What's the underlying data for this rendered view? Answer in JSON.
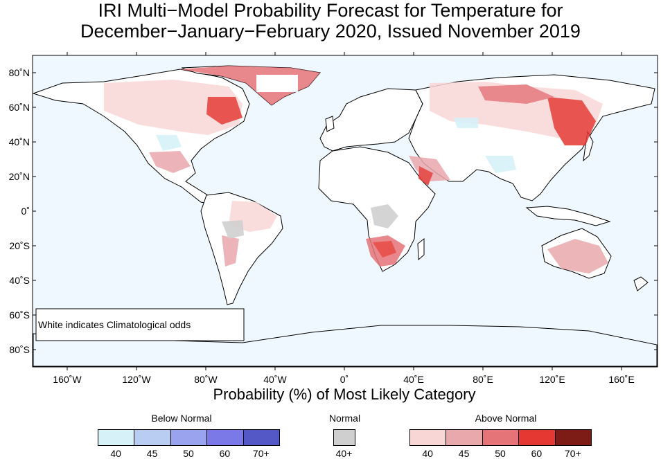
{
  "title": {
    "line1": "IRI Multi−Model Probability Forecast for Temperature for",
    "line2": "December−January−February 2020, Issued November 2019"
  },
  "map": {
    "ocean_color": "#f0f8ff",
    "note": "White indicates Climatological odds",
    "lat_ticks": [
      "80˚N",
      "60˚N",
      "40˚N",
      "20˚N",
      "0˚",
      "20˚S",
      "40˚S",
      "60˚S",
      "80˚S"
    ],
    "lon_ticks": [
      "160˚W",
      "120˚W",
      "80˚W",
      "40˚W",
      "0˚",
      "40˚E",
      "80˚E",
      "120˚E",
      "160˚E"
    ]
  },
  "legend": {
    "xlabel": "Probability (%) of Most Likely Category",
    "below": {
      "label": "Below Normal",
      "bins": [
        "40",
        "45",
        "50",
        "60",
        "70+"
      ],
      "colors": [
        "#d6f2f8",
        "#b9cdf3",
        "#9aa3ee",
        "#7b78e8",
        "#5358c6"
      ]
    },
    "normal": {
      "label": "Normal",
      "bins": [
        "40+"
      ],
      "colors": [
        "#cfcfcf"
      ]
    },
    "above": {
      "label": "Above Normal",
      "bins": [
        "40",
        "45",
        "50",
        "60",
        "70+"
      ],
      "colors": [
        "#f9d6d6",
        "#e9a8ac",
        "#e57479",
        "#e53833",
        "#7d1c17"
      ]
    }
  }
}
